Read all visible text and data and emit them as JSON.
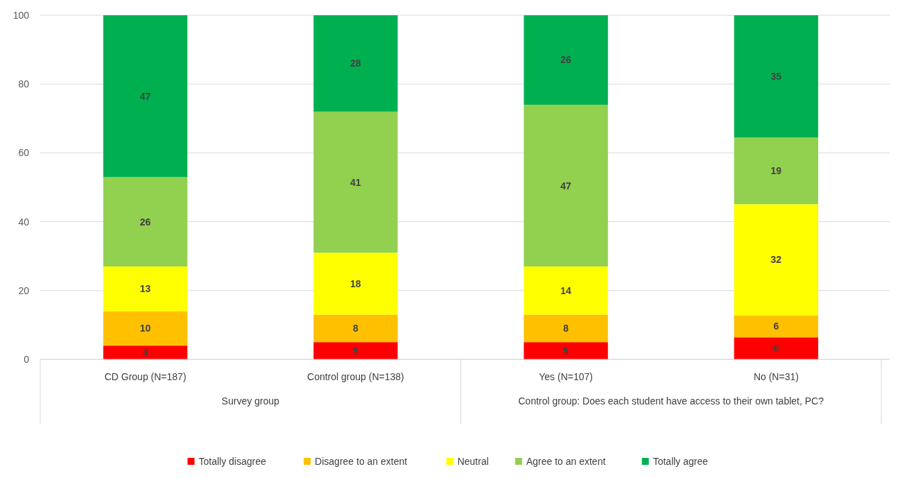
{
  "chart_data": {
    "type": "bar",
    "stacked": true,
    "categories": [
      "CD Group (N=187)",
      "Control group (N=138)",
      "Yes (N=107)",
      "No (N=31)"
    ],
    "series": [
      {
        "name": "Totally disagree",
        "color": "#ff0000",
        "values": [
          4,
          5,
          5,
          6.4
        ],
        "value_labels": [
          "4",
          "5",
          "5",
          "6"
        ]
      },
      {
        "name": "Disagree to an extent",
        "color": "#ffc000",
        "values": [
          10,
          8,
          8,
          6.4
        ],
        "value_labels": [
          "10",
          "8",
          "8",
          "6"
        ]
      },
      {
        "name": "Neutral",
        "color": "#ffff00",
        "values": [
          13,
          18,
          14,
          32.3
        ],
        "value_labels": [
          "13",
          "18",
          "14",
          "32"
        ]
      },
      {
        "name": "Agree to an extent",
        "color": "#92d050",
        "values": [
          26,
          41,
          47,
          19.4
        ],
        "value_labels": [
          "26",
          "41",
          "47",
          "19"
        ]
      },
      {
        "name": "Totally agree",
        "color": "#00b050",
        "values": [
          47,
          28,
          26,
          35.5
        ],
        "value_labels": [
          "47",
          "28",
          "26",
          "35"
        ]
      }
    ],
    "ylim": [
      0,
      100
    ],
    "yticks": [
      0,
      20,
      40,
      60,
      80,
      100
    ],
    "grid": "y",
    "legend": "bottom",
    "annotations": [
      "Survey group",
      "Control group: Does each student have access to their own tablet, PC?"
    ]
  }
}
